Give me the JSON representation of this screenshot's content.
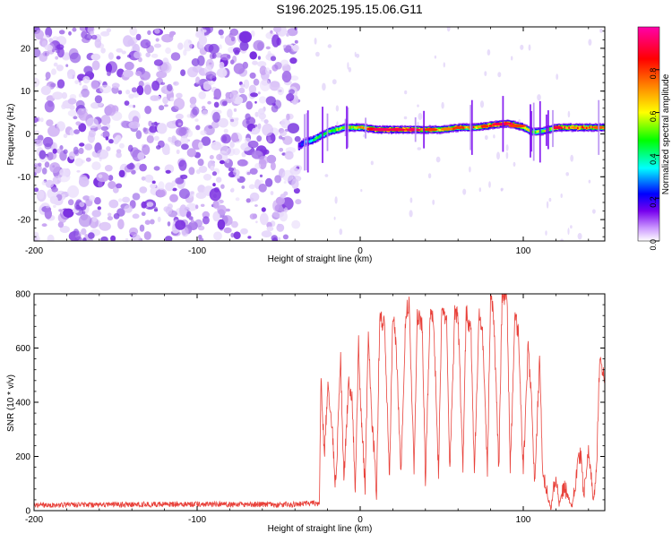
{
  "title": "S196.2025.195.15.06.G11",
  "colorbar": {
    "label": "Normalized spectral amplitude",
    "ticks": [
      0.0,
      0.2,
      0.4,
      0.6,
      0.8
    ],
    "tick_labels": [
      "0.0",
      "0.2",
      "0.4",
      "0.6",
      "0.8"
    ],
    "range": [
      0,
      1
    ],
    "colors": [
      "#ffffff",
      "#cc99ff",
      "#7700ee",
      "#0000ff",
      "#00ffff",
      "#00ff00",
      "#ffff00",
      "#ff8800",
      "#ff0000",
      "#ff00aa"
    ]
  },
  "chart_data": [
    {
      "type": "heatmap",
      "xlabel": "Height of straight line (km)",
      "ylabel": "Frequency (Hz)",
      "xlim": [
        -200,
        150
      ],
      "ylim": [
        -25,
        25
      ],
      "xticks": [
        -200,
        -100,
        0,
        100
      ],
      "xtick_labels": [
        "-200",
        "-100",
        "0",
        "100"
      ],
      "yticks": [
        -20,
        -10,
        0,
        10,
        20
      ],
      "ytick_labels": [
        "-20",
        "-10",
        "0",
        "10",
        "20"
      ],
      "noise_region_x": [
        -200,
        -38
      ],
      "ridge": {
        "x": [
          -38,
          -35,
          -30,
          -25,
          -20,
          -15,
          -10,
          -5,
          0,
          10,
          20,
          30,
          40,
          50,
          60,
          70,
          80,
          90,
          100,
          105,
          110,
          115,
          120,
          130,
          140,
          150
        ],
        "freq": [
          -3,
          -2,
          -1.5,
          -0.5,
          0.5,
          1,
          1.5,
          1.5,
          1.5,
          1,
          1,
          1,
          1,
          1,
          1.5,
          1.5,
          2,
          2.5,
          1.5,
          0.5,
          0.5,
          1,
          1.5,
          1.5,
          1.5,
          1.5
        ],
        "amplitude": [
          0.15,
          0.3,
          0.45,
          0.5,
          0.55,
          0.6,
          0.6,
          0.65,
          0.7,
          0.95,
          0.9,
          0.95,
          0.85,
          0.7,
          0.8,
          0.75,
          0.85,
          0.95,
          0.7,
          0.6,
          0.55,
          0.6,
          0.9,
          0.85,
          0.8,
          0.75
        ]
      },
      "color_scale": "Normalized spectral amplitude"
    },
    {
      "type": "line",
      "xlabel": "Height of straight line (km)",
      "ylabel": "SNR (10 * v/v)",
      "xlim": [
        -200,
        150
      ],
      "ylim": [
        0,
        800
      ],
      "xticks": [
        -200,
        -100,
        0,
        100
      ],
      "xtick_labels": [
        "-200",
        "-100",
        "0",
        "100"
      ],
      "yticks": [
        0,
        200,
        400,
        600,
        800
      ],
      "ytick_labels": [
        "0",
        "200",
        "400",
        "600",
        "800"
      ],
      "color": "#e8413a",
      "series": [
        {
          "x": [
            -200,
            -150,
            -100,
            -50,
            -25,
            -24,
            -22,
            -20,
            -18,
            -15,
            -12,
            -10,
            -7,
            -5,
            -3,
            -1,
            0,
            3,
            5,
            7,
            10,
            12,
            15,
            18,
            20,
            22,
            25,
            28,
            30,
            33,
            35,
            38,
            40,
            43,
            45,
            48,
            50,
            53,
            55,
            58,
            60,
            63,
            65,
            68,
            70,
            73,
            75,
            78,
            80,
            82,
            85,
            87,
            90,
            92,
            95,
            97,
            100,
            103,
            105,
            107,
            110,
            112,
            115,
            117,
            120,
            122,
            125,
            128,
            130,
            133,
            135,
            137,
            140,
            143,
            145,
            147,
            150
          ],
          "y": [
            20,
            22,
            24,
            22,
            28,
            500,
            200,
            450,
            380,
            80,
            560,
            110,
            480,
            420,
            80,
            620,
            420,
            90,
            650,
            360,
            70,
            720,
            680,
            110,
            730,
            620,
            140,
            740,
            760,
            160,
            720,
            690,
            120,
            740,
            710,
            140,
            740,
            700,
            150,
            730,
            720,
            140,
            740,
            650,
            140,
            720,
            660,
            140,
            800,
            700,
            150,
            780,
            790,
            150,
            720,
            650,
            140,
            610,
            400,
            100,
            550,
            140,
            50,
            10,
            130,
            20,
            90,
            40,
            20,
            150,
            220,
            60,
            230,
            30,
            170,
            580,
            480
          ]
        }
      ]
    }
  ]
}
